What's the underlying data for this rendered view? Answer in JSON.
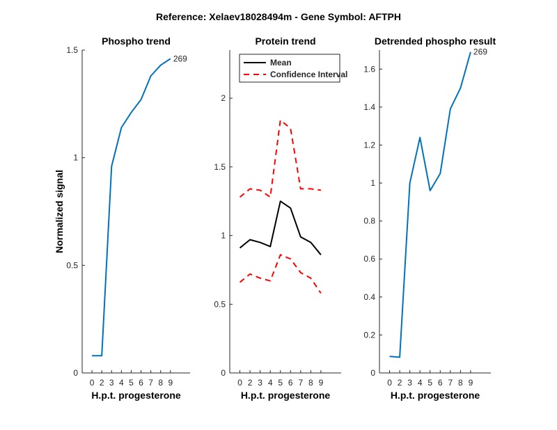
{
  "figure": {
    "suptitle": "Reference:  Xelaev18028494m - Gene Symbol:  AFTPH"
  },
  "chart_data": [
    {
      "type": "line",
      "title": "Phospho trend",
      "xlabel": "H.p.t. progesterone",
      "ylabel": "Normalized signal",
      "xlim": [
        -1,
        10
      ],
      "ylim": [
        0,
        1.5
      ],
      "xticks": [
        0,
        2,
        3,
        4,
        5,
        6,
        7,
        8,
        9
      ],
      "yticks": [
        0,
        0.5,
        1,
        1.5
      ],
      "ytick_labels": [
        "0",
        "0.5",
        "1",
        "1.5"
      ],
      "grid": false,
      "series": [
        {
          "color": "#0072bd",
          "style": "solid",
          "x": [
            0,
            1,
            2,
            3,
            4,
            5,
            6,
            7,
            8
          ],
          "y": [
            0.08,
            0.08,
            0.96,
            1.14,
            1.21,
            1.27,
            1.38,
            1.43,
            1.46
          ]
        }
      ],
      "annotations": [
        {
          "text": "269",
          "x": 8,
          "y": 1.46
        }
      ]
    },
    {
      "type": "line",
      "title": "Protein trend",
      "xlabel": "H.p.t. progesterone",
      "ylabel": "",
      "xlim": [
        -1,
        10
      ],
      "ylim": [
        0,
        2.35
      ],
      "xticks": [
        0,
        2,
        3,
        4,
        5,
        6,
        7,
        8,
        9
      ],
      "yticks": [
        0,
        0.5,
        1,
        1.5,
        2
      ],
      "ytick_labels": [
        "0",
        "0.5",
        "1",
        "1.5",
        "2"
      ],
      "grid": false,
      "legend": {
        "position": "top-left"
      },
      "series": [
        {
          "name": "Mean",
          "color": "#000000",
          "style": "solid",
          "x": [
            0,
            1,
            2,
            3,
            4,
            5,
            6,
            7,
            8
          ],
          "y": [
            0.91,
            0.97,
            0.95,
            0.92,
            1.25,
            1.2,
            0.99,
            0.95,
            0.86
          ]
        },
        {
          "name": "Confidence Interval",
          "color": "#ff0000",
          "style": "dashed",
          "x": [
            0,
            1,
            2,
            3,
            4,
            5,
            6,
            7,
            8
          ],
          "y": [
            1.28,
            1.34,
            1.33,
            1.28,
            1.84,
            1.78,
            1.34,
            1.34,
            1.33
          ]
        },
        {
          "name": "",
          "color": "#ff0000",
          "style": "dashed",
          "x": [
            0,
            1,
            2,
            3,
            4,
            5,
            6,
            7,
            8
          ],
          "y": [
            0.66,
            0.72,
            0.69,
            0.67,
            0.86,
            0.83,
            0.73,
            0.69,
            0.58
          ]
        }
      ]
    },
    {
      "type": "line",
      "title": "Detrended phospho result",
      "xlabel": "H.p.t. progesterone",
      "ylabel": "",
      "xlim": [
        -1,
        10
      ],
      "ylim": [
        0,
        1.7
      ],
      "xticks": [
        0,
        2,
        3,
        4,
        5,
        6,
        7,
        8,
        9
      ],
      "yticks": [
        0,
        0.2,
        0.4,
        0.6,
        0.8,
        1,
        1.2,
        1.4,
        1.6
      ],
      "ytick_labels": [
        "0",
        "0.2",
        "0.4",
        "0.6",
        "0.8",
        "1",
        "1.2",
        "1.4",
        "1.6"
      ],
      "grid": false,
      "series": [
        {
          "color": "#0072bd",
          "style": "solid",
          "x": [
            0,
            1,
            2,
            3,
            4,
            5,
            6,
            7,
            8
          ],
          "y": [
            0.087,
            0.083,
            1.0,
            1.24,
            0.96,
            1.05,
            1.39,
            1.5,
            1.69
          ]
        }
      ],
      "annotations": [
        {
          "text": "269",
          "x": 8,
          "y": 1.69
        }
      ]
    }
  ]
}
